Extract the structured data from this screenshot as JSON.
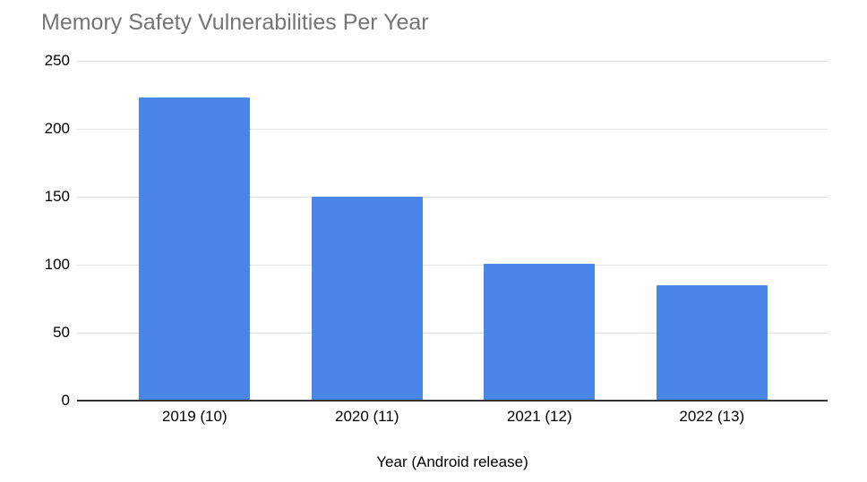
{
  "chart_data": {
    "type": "bar",
    "title": "Memory Safety Vulnerabilities Per Year",
    "xlabel": "Year (Android release)",
    "ylabel": "",
    "categories": [
      "2019 (10)",
      "2020 (11)",
      "2021 (12)",
      "2022 (13)"
    ],
    "values": [
      223,
      150,
      101,
      85
    ],
    "ylim": [
      0,
      250
    ],
    "yticks": [
      0,
      50,
      100,
      150,
      200,
      250
    ],
    "grid": "horizontal",
    "legend": "none",
    "colors": {
      "bar": "#4a86e8",
      "gridline": "#e3e3e3",
      "axis_line": "#333333",
      "title_text": "#757575",
      "label_text": "#000000"
    }
  }
}
